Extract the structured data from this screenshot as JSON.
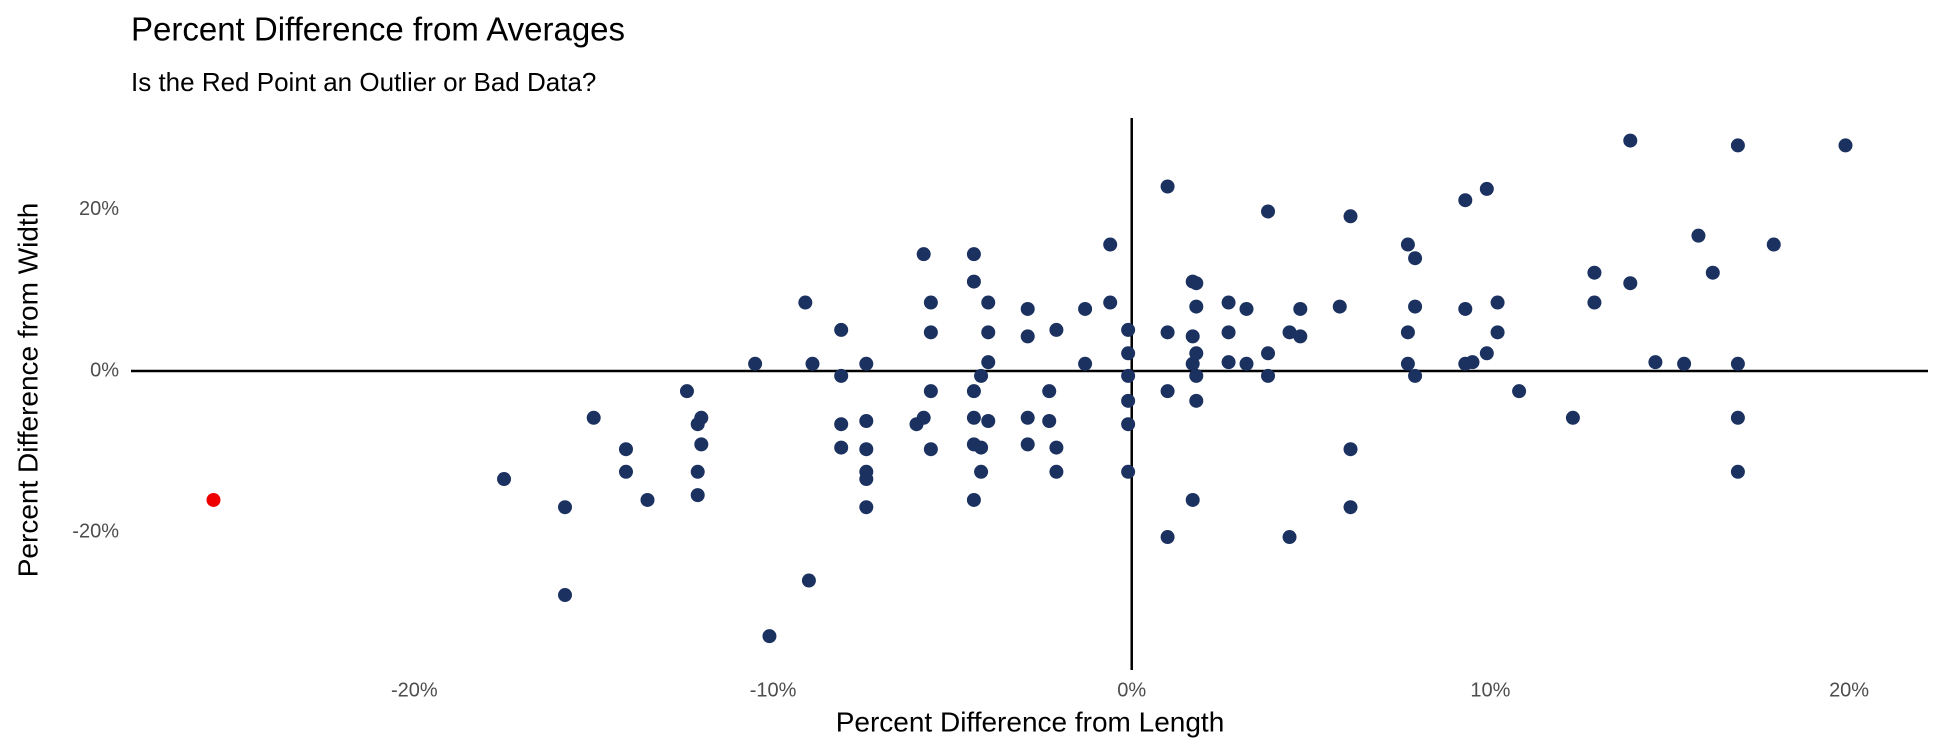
{
  "chart_data": {
    "type": "scatter",
    "title": "Percent Difference from Averages",
    "subtitle": "Is the Red Point an Outlier or Bad Data?",
    "x_label": "Percent Difference from Length",
    "y_label": "Percent Difference from Width",
    "xlim": [
      -27.9,
      22.2
    ],
    "ylim": [
      -37.1,
      31.4
    ],
    "xticks": [
      {
        "value": -20,
        "label": "-20%"
      },
      {
        "value": -10,
        "label": "-10%"
      },
      {
        "value": 0,
        "label": "0%"
      },
      {
        "value": 10,
        "label": "10%"
      },
      {
        "value": 20,
        "label": "20%"
      }
    ],
    "yticks": [
      {
        "value": -20,
        "label": "-20%"
      },
      {
        "value": 0,
        "label": "0%"
      },
      {
        "value": 20,
        "label": "20%"
      }
    ],
    "reference_lines": {
      "x": 0,
      "y": 0
    },
    "grid": false,
    "series": [
      {
        "color": "#1b3160",
        "x": [
          -17.5,
          -15.8,
          -15.8,
          -15.0,
          -14.1,
          -14.1,
          -13.5,
          -12.4,
          -12.1,
          -12.0,
          -12.0,
          -12.1,
          -12.1,
          -10.5,
          -10.1,
          -9.1,
          -8.9,
          -9.0,
          -8.1,
          -8.1,
          -8.1,
          -8.1,
          -7.4,
          -7.4,
          -7.4,
          -7.4,
          -7.4,
          -7.4,
          -6.0,
          -5.8,
          -5.8,
          -5.6,
          -5.6,
          -5.6,
          -5.6,
          -4.4,
          -4.4,
          -4.4,
          -4.4,
          -4.4,
          -4.4,
          -4.2,
          -4.2,
          -4.2,
          -4.0,
          -4.0,
          -4.0,
          -4.0,
          -2.9,
          -2.9,
          -2.9,
          -2.9,
          -2.3,
          -2.3,
          -2.1,
          -2.1,
          -2.1,
          -1.3,
          -1.3,
          -0.6,
          -0.6,
          -0.1,
          -0.1,
          -0.1,
          -0.1,
          -0.1,
          -0.1,
          1.0,
          1.0,
          1.0,
          1.0,
          1.7,
          1.8,
          1.7,
          1.7,
          1.7,
          1.8,
          1.8,
          1.8,
          1.8,
          2.7,
          2.7,
          2.7,
          3.2,
          3.2,
          3.8,
          3.8,
          3.8,
          4.4,
          4.4,
          4.7,
          4.7,
          5.8,
          6.1,
          6.1,
          6.1,
          7.7,
          7.9,
          7.9,
          7.7,
          7.7,
          7.9,
          9.3,
          9.3,
          9.3,
          9.5,
          9.9,
          9.9,
          10.2,
          10.2,
          10.8,
          12.3,
          12.9,
          12.9,
          13.9,
          13.9,
          14.6,
          15.4,
          15.8,
          16.2,
          16.9,
          16.9,
          16.9,
          16.9,
          17.9,
          19.9
        ],
        "y": [
          -13.4,
          -16.9,
          -27.8,
          -5.8,
          -9.7,
          -12.5,
          -16.0,
          -2.5,
          -6.6,
          -5.8,
          -9.1,
          -12.5,
          -15.4,
          0.9,
          -32.9,
          8.5,
          0.9,
          -26.0,
          5.1,
          -0.6,
          -6.6,
          -9.5,
          0.9,
          -12.5,
          -13.4,
          -6.2,
          -9.7,
          -16.9,
          -6.6,
          -5.8,
          14.5,
          8.5,
          4.8,
          -2.5,
          -9.7,
          14.5,
          11.1,
          -2.5,
          -5.8,
          -9.1,
          -16.0,
          -0.6,
          -9.5,
          -12.5,
          8.5,
          4.8,
          1.1,
          -6.2,
          7.7,
          4.3,
          -5.8,
          -9.1,
          -2.5,
          -6.2,
          5.1,
          -9.5,
          -12.5,
          7.7,
          0.9,
          15.7,
          8.5,
          5.1,
          2.2,
          -0.6,
          -3.7,
          -6.6,
          -12.5,
          22.9,
          4.8,
          -2.5,
          -20.6,
          11.1,
          10.9,
          4.3,
          0.9,
          -16.0,
          8.0,
          2.2,
          -0.6,
          -3.7,
          8.5,
          4.8,
          1.1,
          7.7,
          0.9,
          19.8,
          2.2,
          -0.6,
          4.8,
          -20.6,
          7.7,
          4.3,
          8.0,
          19.2,
          -9.7,
          -16.9,
          15.7,
          14.0,
          8.0,
          4.8,
          0.9,
          -0.6,
          21.2,
          7.7,
          0.9,
          1.1,
          22.6,
          2.2,
          8.5,
          4.8,
          -2.5,
          -5.8,
          12.2,
          8.5,
          28.6,
          10.9,
          1.1,
          0.9,
          16.8,
          12.2,
          28.0,
          0.9,
          -5.8,
          -12.5,
          15.7,
          28.0
        ]
      },
      {
        "color": "#ee0000",
        "x": [
          -25.6
        ],
        "y": [
          -16.0
        ]
      }
    ]
  }
}
